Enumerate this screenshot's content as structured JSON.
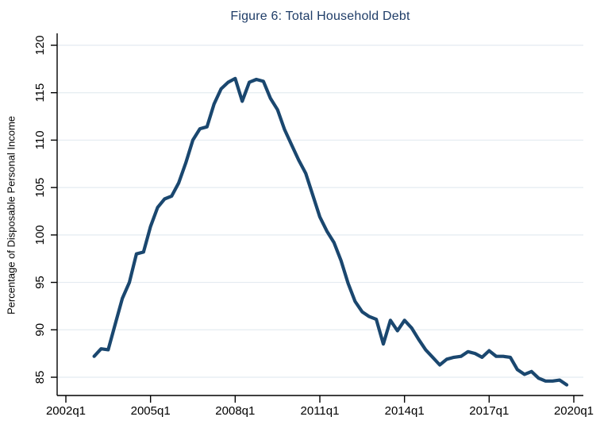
{
  "figure": {
    "title": "Figure 6: Total Household Debt",
    "y_axis_title": "Percentage of Disposable Personal Income"
  },
  "chart_data": {
    "type": "line",
    "title": "Figure 6: Total Household Debt",
    "xlabel": "",
    "ylabel": "Percentage of Disposable Personal Income",
    "grid": true,
    "legend_position": "none",
    "ylim": [
      85,
      120
    ],
    "xlim": [
      "2002q1",
      "2020q1"
    ],
    "y_ticks": [
      85,
      90,
      95,
      100,
      105,
      110,
      115,
      120
    ],
    "x_tick_labels": [
      "2002q1",
      "2005q1",
      "2008q1",
      "2011q1",
      "2014q1",
      "2017q1",
      "2020q1"
    ],
    "x": [
      "2003q1",
      "2003q2",
      "2003q3",
      "2003q4",
      "2004q1",
      "2004q2",
      "2004q3",
      "2004q4",
      "2005q1",
      "2005q2",
      "2005q3",
      "2005q4",
      "2006q1",
      "2006q2",
      "2006q3",
      "2006q4",
      "2007q1",
      "2007q2",
      "2007q3",
      "2007q4",
      "2008q1",
      "2008q2",
      "2008q3",
      "2008q4",
      "2009q1",
      "2009q2",
      "2009q3",
      "2009q4",
      "2010q1",
      "2010q2",
      "2010q3",
      "2010q4",
      "2011q1",
      "2011q2",
      "2011q3",
      "2011q4",
      "2012q1",
      "2012q2",
      "2012q3",
      "2012q4",
      "2013q1",
      "2013q2",
      "2013q3",
      "2013q4",
      "2014q1",
      "2014q2",
      "2014q3",
      "2014q4",
      "2015q1",
      "2015q2",
      "2015q3",
      "2015q4",
      "2016q1",
      "2016q2",
      "2016q3",
      "2016q4",
      "2017q1",
      "2017q2",
      "2017q3",
      "2017q4",
      "2018q1",
      "2018q2",
      "2018q3",
      "2018q4",
      "2019q1",
      "2019q2",
      "2019q3",
      "2019q4"
    ],
    "values": [
      87.2,
      88.0,
      87.9,
      90.6,
      93.3,
      95.0,
      98.0,
      98.2,
      100.9,
      102.9,
      103.8,
      104.1,
      105.5,
      107.6,
      110.0,
      111.2,
      111.4,
      113.8,
      115.4,
      116.1,
      116.5,
      114.1,
      116.1,
      116.4,
      116.2,
      114.4,
      113.2,
      111.1,
      109.5,
      107.9,
      106.5,
      104.2,
      101.9,
      100.4,
      99.2,
      97.3,
      94.9,
      93.0,
      91.9,
      91.4,
      91.1,
      88.5,
      91.0,
      89.9,
      91.0,
      90.2,
      89.0,
      87.9,
      87.1,
      86.3,
      86.9,
      87.1,
      87.2,
      87.7,
      87.5,
      87.1,
      87.8,
      87.2,
      87.2,
      87.1,
      85.8,
      85.3,
      85.6,
      84.9,
      84.6,
      84.6,
      84.7,
      84.2
    ],
    "colors": {
      "line": "#1a476f",
      "title": "#1f3d68",
      "grid": "#e4ebf1",
      "axis": "#000000",
      "background": "#ffffff"
    }
  }
}
